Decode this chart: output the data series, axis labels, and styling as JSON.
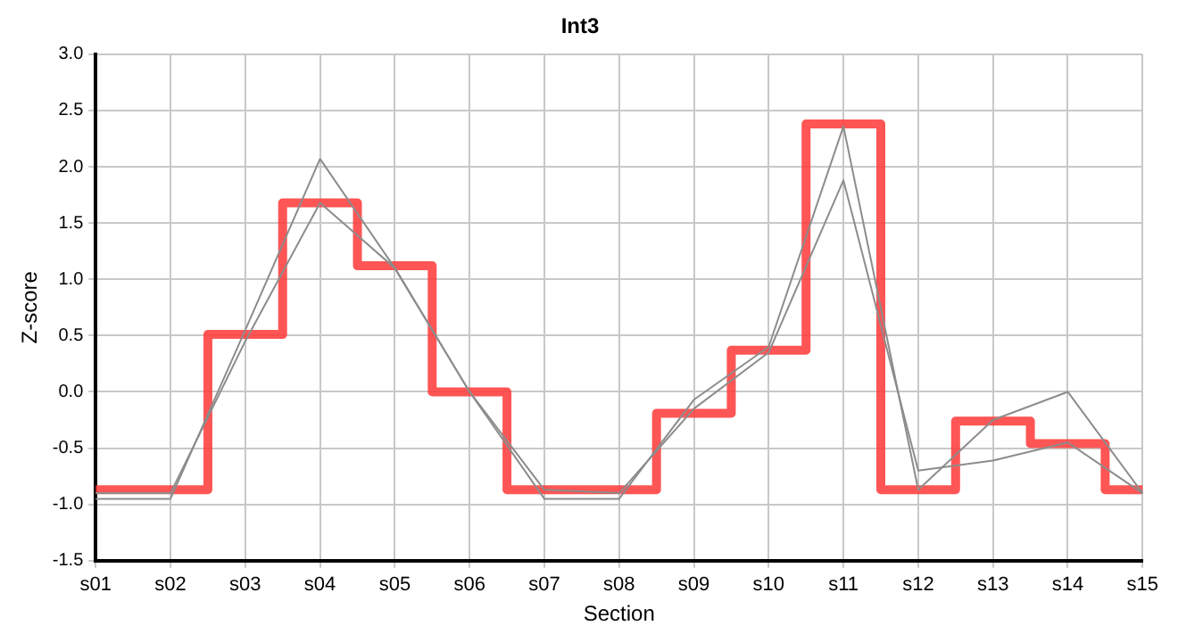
{
  "chart_data": {
    "type": "line",
    "title": "Int3",
    "xlabel": "Section",
    "ylabel": "Z-score",
    "categories": [
      "s01",
      "s02",
      "s03",
      "s04",
      "s05",
      "s06",
      "s07",
      "s08",
      "s09",
      "s10",
      "s11",
      "s12",
      "s13",
      "s14",
      "s15"
    ],
    "series": [
      {
        "color": "#8c8c8c",
        "values": [
          -0.95,
          -0.95,
          0.55,
          2.07,
          1.1,
          0.0,
          -0.95,
          -0.95,
          -0.07,
          0.4,
          2.36,
          -0.87,
          -0.25,
          0.0,
          -0.9
        ]
      },
      {
        "color": "#8c8c8c",
        "values": [
          -0.9,
          -0.9,
          0.45,
          1.68,
          1.1,
          0.0,
          -0.87,
          -0.9,
          -0.15,
          0.35,
          1.88,
          -0.7,
          -0.61,
          -0.45,
          -0.9
        ]
      },
      {
        "type": "step",
        "color": "#ff3b3b",
        "values": [
          -0.87,
          -0.87,
          0.51,
          1.68,
          1.12,
          0.0,
          -0.87,
          -0.87,
          -0.19,
          0.37,
          2.38,
          -0.87,
          -0.26,
          -0.46,
          -0.87
        ]
      }
    ],
    "ylim": [
      -1.5,
      3.0
    ],
    "yticks": [
      -1.5,
      {
        "value": -1,
        "label": "-1.0"
      },
      -0.5,
      {
        "value": 0,
        "label": "0.0"
      },
      0.5,
      {
        "value": 1,
        "label": "1.0"
      },
      1.5,
      {
        "value": 2,
        "label": "2.0"
      },
      2.5,
      {
        "value": 3,
        "label": "3.0"
      }
    ],
    "grid": true,
    "legend": false,
    "marker": "none",
    "line_style": "solid"
  }
}
